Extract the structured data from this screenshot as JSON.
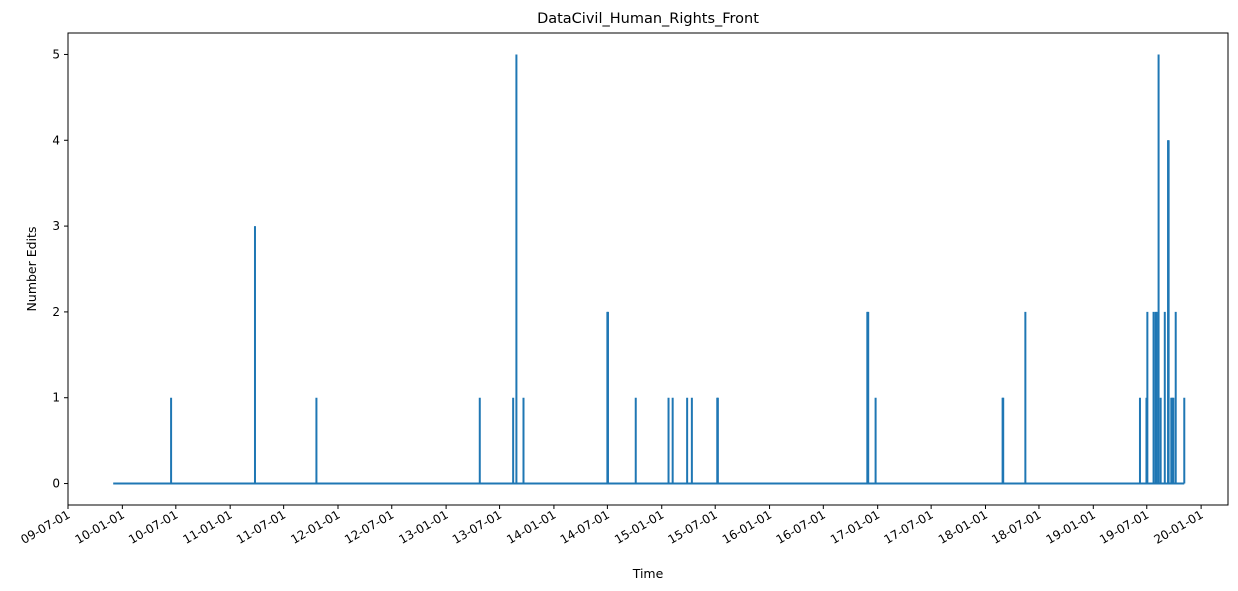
{
  "chart_data": {
    "type": "line",
    "title": "DataCivil_Human_Rights_Front",
    "xlabel": "Time",
    "ylabel": "Number Edits",
    "xlim": [
      "2009-07-01",
      "2020-04-01"
    ],
    "ylim": [
      -0.25,
      5.25
    ],
    "grid": false,
    "legend": "none",
    "color": "#1f77b4",
    "x_ticks": [
      {
        "date": "2009-07-01",
        "label": "09-07-01"
      },
      {
        "date": "2010-01-01",
        "label": "10-01-01"
      },
      {
        "date": "2010-07-01",
        "label": "10-07-01"
      },
      {
        "date": "2011-01-01",
        "label": "11-01-01"
      },
      {
        "date": "2011-07-01",
        "label": "11-07-01"
      },
      {
        "date": "2012-01-01",
        "label": "12-01-01"
      },
      {
        "date": "2012-07-01",
        "label": "12-07-01"
      },
      {
        "date": "2013-01-01",
        "label": "13-01-01"
      },
      {
        "date": "2013-07-01",
        "label": "13-07-01"
      },
      {
        "date": "2014-01-01",
        "label": "14-01-01"
      },
      {
        "date": "2014-07-01",
        "label": "14-07-01"
      },
      {
        "date": "2015-01-01",
        "label": "15-01-01"
      },
      {
        "date": "2015-07-01",
        "label": "15-07-01"
      },
      {
        "date": "2016-01-01",
        "label": "16-01-01"
      },
      {
        "date": "2016-07-01",
        "label": "16-07-01"
      },
      {
        "date": "2017-01-01",
        "label": "17-01-01"
      },
      {
        "date": "2017-07-01",
        "label": "17-07-01"
      },
      {
        "date": "2018-01-01",
        "label": "18-01-01"
      },
      {
        "date": "2018-07-01",
        "label": "18-07-01"
      },
      {
        "date": "2019-01-01",
        "label": "19-01-01"
      },
      {
        "date": "2019-07-01",
        "label": "19-07-01"
      },
      {
        "date": "2020-01-01",
        "label": "20-01-01"
      }
    ],
    "y_ticks": [
      0,
      1,
      2,
      3,
      4,
      5
    ],
    "range": {
      "start": "2009-12-01",
      "end": "2019-11-05"
    },
    "spikes": [
      {
        "date": "2010-06-15",
        "value": 1
      },
      {
        "date": "2011-03-26",
        "value": 3
      },
      {
        "date": "2011-10-20",
        "value": 1
      },
      {
        "date": "2013-04-25",
        "value": 1
      },
      {
        "date": "2013-08-16",
        "value": 1
      },
      {
        "date": "2013-08-27",
        "value": 5
      },
      {
        "date": "2013-09-20",
        "value": 1
      },
      {
        "date": "2014-07-01",
        "value": 2
      },
      {
        "date": "2014-07-03",
        "value": 2
      },
      {
        "date": "2014-10-05",
        "value": 1
      },
      {
        "date": "2015-01-24",
        "value": 1
      },
      {
        "date": "2015-02-07",
        "value": 1
      },
      {
        "date": "2015-03-28",
        "value": 1
      },
      {
        "date": "2015-04-13",
        "value": 1
      },
      {
        "date": "2015-07-08",
        "value": 1
      },
      {
        "date": "2015-07-10",
        "value": 1
      },
      {
        "date": "2016-11-27",
        "value": 2
      },
      {
        "date": "2016-11-30",
        "value": 2
      },
      {
        "date": "2016-12-25",
        "value": 1
      },
      {
        "date": "2018-02-28",
        "value": 1
      },
      {
        "date": "2018-03-02",
        "value": 1
      },
      {
        "date": "2018-05-16",
        "value": 2
      },
      {
        "date": "2019-06-08",
        "value": 1
      },
      {
        "date": "2019-06-30",
        "value": 1
      },
      {
        "date": "2019-07-03",
        "value": 2
      },
      {
        "date": "2019-07-24",
        "value": 2
      },
      {
        "date": "2019-07-31",
        "value": 2
      },
      {
        "date": "2019-08-04",
        "value": 2
      },
      {
        "date": "2019-08-10",
        "value": 5
      },
      {
        "date": "2019-08-17",
        "value": 1
      },
      {
        "date": "2019-08-31",
        "value": 2
      },
      {
        "date": "2019-09-11",
        "value": 4
      },
      {
        "date": "2019-09-13",
        "value": 4
      },
      {
        "date": "2019-09-22",
        "value": 1
      },
      {
        "date": "2019-09-26",
        "value": 1
      },
      {
        "date": "2019-09-29",
        "value": 1
      },
      {
        "date": "2019-10-07",
        "value": 2
      },
      {
        "date": "2019-11-05",
        "value": 1
      }
    ]
  }
}
